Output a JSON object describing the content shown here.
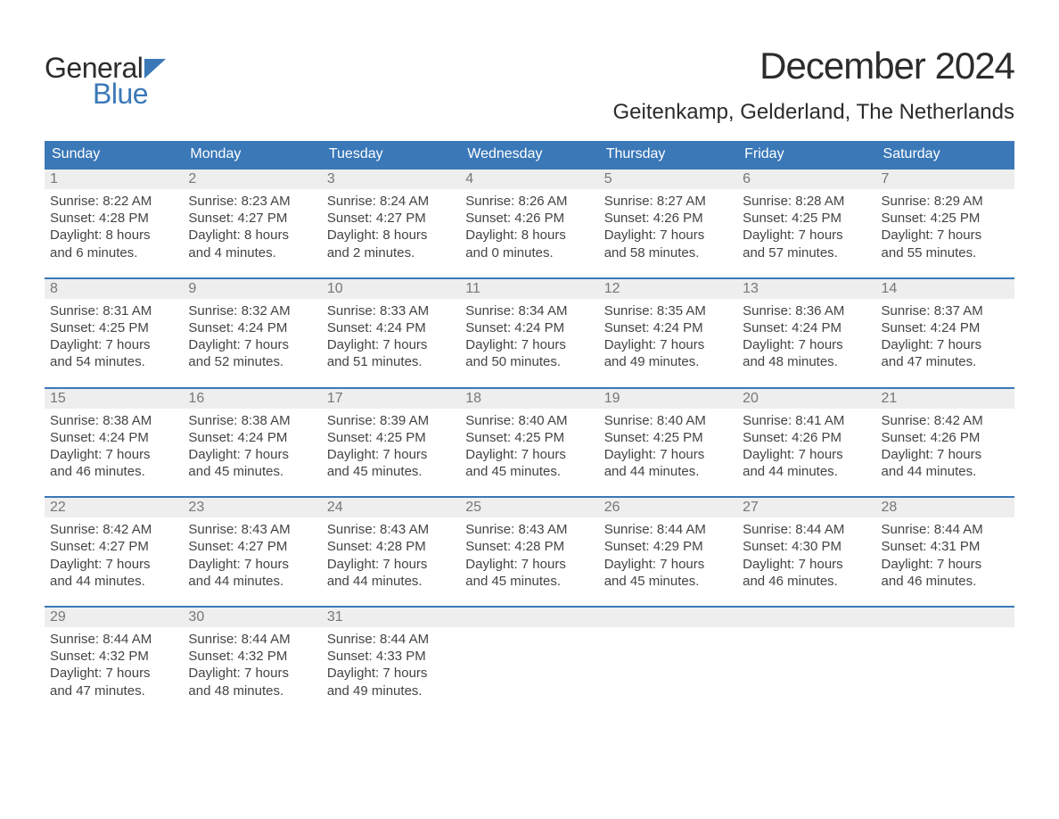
{
  "brand": {
    "word1": "General",
    "word2": "Blue",
    "word1_color": "#2c2c2c",
    "word2_color": "#3a78b8",
    "flag_color": "#3a78b8"
  },
  "title": "December 2024",
  "location": "Geitenkamp, Gelderland, The Netherlands",
  "colors": {
    "header_bg": "#3a78b8",
    "header_text": "#ffffff",
    "week_border": "#3a78b8",
    "daynum_bg": "#eeeeee",
    "daynum_text": "#777777",
    "body_text": "#444444",
    "background": "#ffffff"
  },
  "typography": {
    "title_fontsize": 42,
    "location_fontsize": 24,
    "dow_fontsize": 16,
    "daynum_fontsize": 16,
    "details_fontsize": 15,
    "logo_fontsize": 32
  },
  "days_of_week": [
    "Sunday",
    "Monday",
    "Tuesday",
    "Wednesday",
    "Thursday",
    "Friday",
    "Saturday"
  ],
  "weeks": [
    [
      {
        "n": "1",
        "sunrise": "Sunrise: 8:22 AM",
        "sunset": "Sunset: 4:28 PM",
        "dl1": "Daylight: 8 hours",
        "dl2": "and 6 minutes."
      },
      {
        "n": "2",
        "sunrise": "Sunrise: 8:23 AM",
        "sunset": "Sunset: 4:27 PM",
        "dl1": "Daylight: 8 hours",
        "dl2": "and 4 minutes."
      },
      {
        "n": "3",
        "sunrise": "Sunrise: 8:24 AM",
        "sunset": "Sunset: 4:27 PM",
        "dl1": "Daylight: 8 hours",
        "dl2": "and 2 minutes."
      },
      {
        "n": "4",
        "sunrise": "Sunrise: 8:26 AM",
        "sunset": "Sunset: 4:26 PM",
        "dl1": "Daylight: 8 hours",
        "dl2": "and 0 minutes."
      },
      {
        "n": "5",
        "sunrise": "Sunrise: 8:27 AM",
        "sunset": "Sunset: 4:26 PM",
        "dl1": "Daylight: 7 hours",
        "dl2": "and 58 minutes."
      },
      {
        "n": "6",
        "sunrise": "Sunrise: 8:28 AM",
        "sunset": "Sunset: 4:25 PM",
        "dl1": "Daylight: 7 hours",
        "dl2": "and 57 minutes."
      },
      {
        "n": "7",
        "sunrise": "Sunrise: 8:29 AM",
        "sunset": "Sunset: 4:25 PM",
        "dl1": "Daylight: 7 hours",
        "dl2": "and 55 minutes."
      }
    ],
    [
      {
        "n": "8",
        "sunrise": "Sunrise: 8:31 AM",
        "sunset": "Sunset: 4:25 PM",
        "dl1": "Daylight: 7 hours",
        "dl2": "and 54 minutes."
      },
      {
        "n": "9",
        "sunrise": "Sunrise: 8:32 AM",
        "sunset": "Sunset: 4:24 PM",
        "dl1": "Daylight: 7 hours",
        "dl2": "and 52 minutes."
      },
      {
        "n": "10",
        "sunrise": "Sunrise: 8:33 AM",
        "sunset": "Sunset: 4:24 PM",
        "dl1": "Daylight: 7 hours",
        "dl2": "and 51 minutes."
      },
      {
        "n": "11",
        "sunrise": "Sunrise: 8:34 AM",
        "sunset": "Sunset: 4:24 PM",
        "dl1": "Daylight: 7 hours",
        "dl2": "and 50 minutes."
      },
      {
        "n": "12",
        "sunrise": "Sunrise: 8:35 AM",
        "sunset": "Sunset: 4:24 PM",
        "dl1": "Daylight: 7 hours",
        "dl2": "and 49 minutes."
      },
      {
        "n": "13",
        "sunrise": "Sunrise: 8:36 AM",
        "sunset": "Sunset: 4:24 PM",
        "dl1": "Daylight: 7 hours",
        "dl2": "and 48 minutes."
      },
      {
        "n": "14",
        "sunrise": "Sunrise: 8:37 AM",
        "sunset": "Sunset: 4:24 PM",
        "dl1": "Daylight: 7 hours",
        "dl2": "and 47 minutes."
      }
    ],
    [
      {
        "n": "15",
        "sunrise": "Sunrise: 8:38 AM",
        "sunset": "Sunset: 4:24 PM",
        "dl1": "Daylight: 7 hours",
        "dl2": "and 46 minutes."
      },
      {
        "n": "16",
        "sunrise": "Sunrise: 8:38 AM",
        "sunset": "Sunset: 4:24 PM",
        "dl1": "Daylight: 7 hours",
        "dl2": "and 45 minutes."
      },
      {
        "n": "17",
        "sunrise": "Sunrise: 8:39 AM",
        "sunset": "Sunset: 4:25 PM",
        "dl1": "Daylight: 7 hours",
        "dl2": "and 45 minutes."
      },
      {
        "n": "18",
        "sunrise": "Sunrise: 8:40 AM",
        "sunset": "Sunset: 4:25 PM",
        "dl1": "Daylight: 7 hours",
        "dl2": "and 45 minutes."
      },
      {
        "n": "19",
        "sunrise": "Sunrise: 8:40 AM",
        "sunset": "Sunset: 4:25 PM",
        "dl1": "Daylight: 7 hours",
        "dl2": "and 44 minutes."
      },
      {
        "n": "20",
        "sunrise": "Sunrise: 8:41 AM",
        "sunset": "Sunset: 4:26 PM",
        "dl1": "Daylight: 7 hours",
        "dl2": "and 44 minutes."
      },
      {
        "n": "21",
        "sunrise": "Sunrise: 8:42 AM",
        "sunset": "Sunset: 4:26 PM",
        "dl1": "Daylight: 7 hours",
        "dl2": "and 44 minutes."
      }
    ],
    [
      {
        "n": "22",
        "sunrise": "Sunrise: 8:42 AM",
        "sunset": "Sunset: 4:27 PM",
        "dl1": "Daylight: 7 hours",
        "dl2": "and 44 minutes."
      },
      {
        "n": "23",
        "sunrise": "Sunrise: 8:43 AM",
        "sunset": "Sunset: 4:27 PM",
        "dl1": "Daylight: 7 hours",
        "dl2": "and 44 minutes."
      },
      {
        "n": "24",
        "sunrise": "Sunrise: 8:43 AM",
        "sunset": "Sunset: 4:28 PM",
        "dl1": "Daylight: 7 hours",
        "dl2": "and 44 minutes."
      },
      {
        "n": "25",
        "sunrise": "Sunrise: 8:43 AM",
        "sunset": "Sunset: 4:28 PM",
        "dl1": "Daylight: 7 hours",
        "dl2": "and 45 minutes."
      },
      {
        "n": "26",
        "sunrise": "Sunrise: 8:44 AM",
        "sunset": "Sunset: 4:29 PM",
        "dl1": "Daylight: 7 hours",
        "dl2": "and 45 minutes."
      },
      {
        "n": "27",
        "sunrise": "Sunrise: 8:44 AM",
        "sunset": "Sunset: 4:30 PM",
        "dl1": "Daylight: 7 hours",
        "dl2": "and 46 minutes."
      },
      {
        "n": "28",
        "sunrise": "Sunrise: 8:44 AM",
        "sunset": "Sunset: 4:31 PM",
        "dl1": "Daylight: 7 hours",
        "dl2": "and 46 minutes."
      }
    ],
    [
      {
        "n": "29",
        "sunrise": "Sunrise: 8:44 AM",
        "sunset": "Sunset: 4:32 PM",
        "dl1": "Daylight: 7 hours",
        "dl2": "and 47 minutes."
      },
      {
        "n": "30",
        "sunrise": "Sunrise: 8:44 AM",
        "sunset": "Sunset: 4:32 PM",
        "dl1": "Daylight: 7 hours",
        "dl2": "and 48 minutes."
      },
      {
        "n": "31",
        "sunrise": "Sunrise: 8:44 AM",
        "sunset": "Sunset: 4:33 PM",
        "dl1": "Daylight: 7 hours",
        "dl2": "and 49 minutes."
      },
      null,
      null,
      null,
      null
    ]
  ]
}
